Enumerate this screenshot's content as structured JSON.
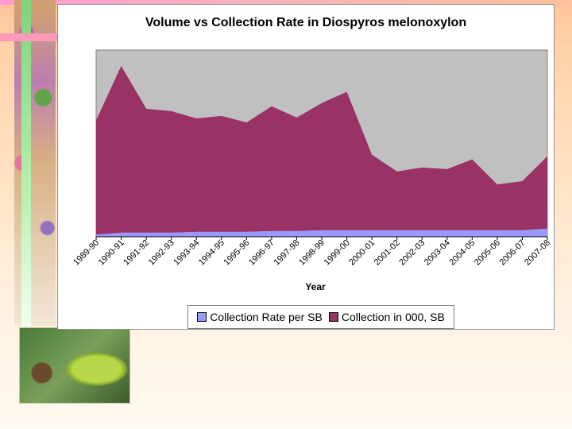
{
  "chart_data": {
    "type": "area",
    "title": "Volume vs Collection Rate in Diospyros melonoxylon",
    "xlabel": "Year",
    "ylabel": "",
    "categories": [
      "1989-90",
      "1990-91",
      "1991-92",
      "1992-93",
      "1993-94",
      "1994-95",
      "1995-96",
      "1996-97",
      "1997-98",
      "1998-99",
      "1999-00",
      "2000-01",
      "2001-02",
      "2002-03",
      "2003-04",
      "2004-05",
      "2005-06",
      "2006-07",
      "2007-08"
    ],
    "series": [
      {
        "name": "Collection Rate per SB",
        "color": "#9999ff",
        "values": [
          3.5,
          6.6,
          6.6,
          6.6,
          7.9,
          7.9,
          7.9,
          9.2,
          9.2,
          10.5,
          10.5,
          10.5,
          10.5,
          10.5,
          10.5,
          10.5,
          10.5,
          10.5,
          13.2
        ]
      },
      {
        "name": "Collection in  000, SB",
        "color": "#993366",
        "values": [
          186.8,
          272.4,
          202.6,
          198.7,
          185.5,
          189.5,
          178.9,
          203.9,
          185.5,
          207.9,
          226.3,
          123.7,
          96.1,
          102.6,
          100.0,
          115.8,
          75.0,
          80.3,
          118.4
        ]
      }
    ],
    "ylim": [
      0,
      305
    ],
    "stacked": true,
    "plot_background": "#c0c0c0",
    "grid": false,
    "legend_position": "bottom"
  }
}
